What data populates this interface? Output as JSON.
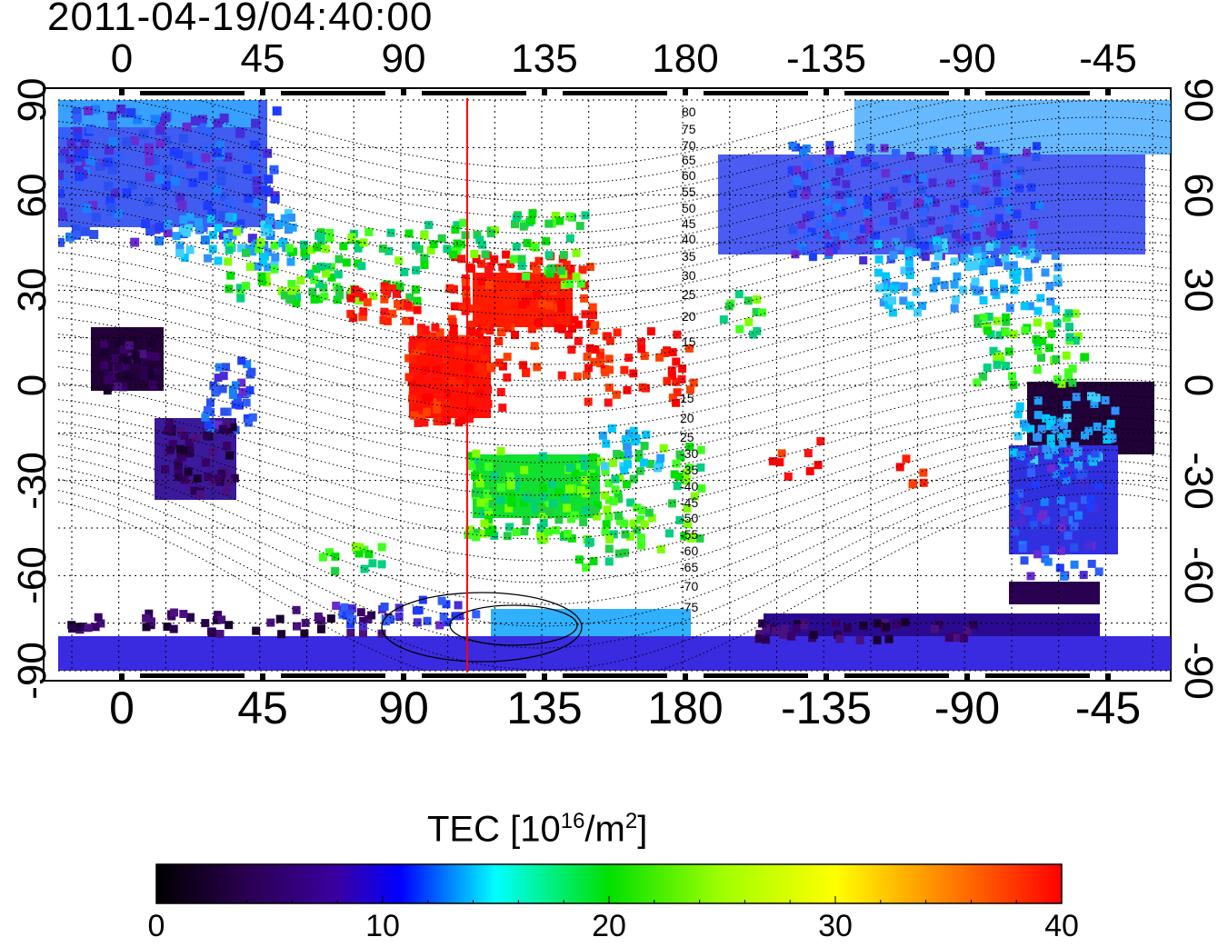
{
  "timestamp": "2011-04-19/04:40:00",
  "map": {
    "top_axis_labels": [
      "0",
      "45",
      "90",
      "135",
      "180",
      "-135",
      "-90",
      "-45"
    ],
    "bottom_axis_labels": [
      "0",
      "45",
      "90",
      "135",
      "180",
      "-135",
      "-90",
      "-45"
    ],
    "left_axis_labels": [
      "90",
      "60",
      "30",
      "0",
      "-30",
      "-60",
      "-90"
    ],
    "right_axis_labels": [
      "90",
      "60",
      "30",
      "0",
      "-30",
      "-60",
      "-90"
    ],
    "contour_labels_north": [
      "80",
      "75",
      "70",
      "65",
      "60",
      "55",
      "50",
      "45",
      "40",
      "35",
      "30",
      "25",
      "20",
      "15"
    ],
    "contour_labels_south": [
      "15",
      "20",
      "25",
      "-30",
      "-35",
      "-40",
      "-45",
      "-50",
      "-55",
      "-60",
      "-65",
      "-70",
      "-75"
    ],
    "red_meridian_color": "#ff0000"
  },
  "colorbar": {
    "title": "TEC  [10",
    "title_sup": "16",
    "title_unit": "/m",
    "title_sup2": "2",
    "title_end": "]",
    "ticks": [
      "0",
      "10",
      "20",
      "30",
      "40"
    ],
    "min": 0,
    "max": 40,
    "colors": [
      "#000000",
      "#3a0066",
      "#0000ff",
      "#00ffff",
      "#00ff00",
      "#ffff00",
      "#ff8000",
      "#ff0000"
    ]
  }
}
